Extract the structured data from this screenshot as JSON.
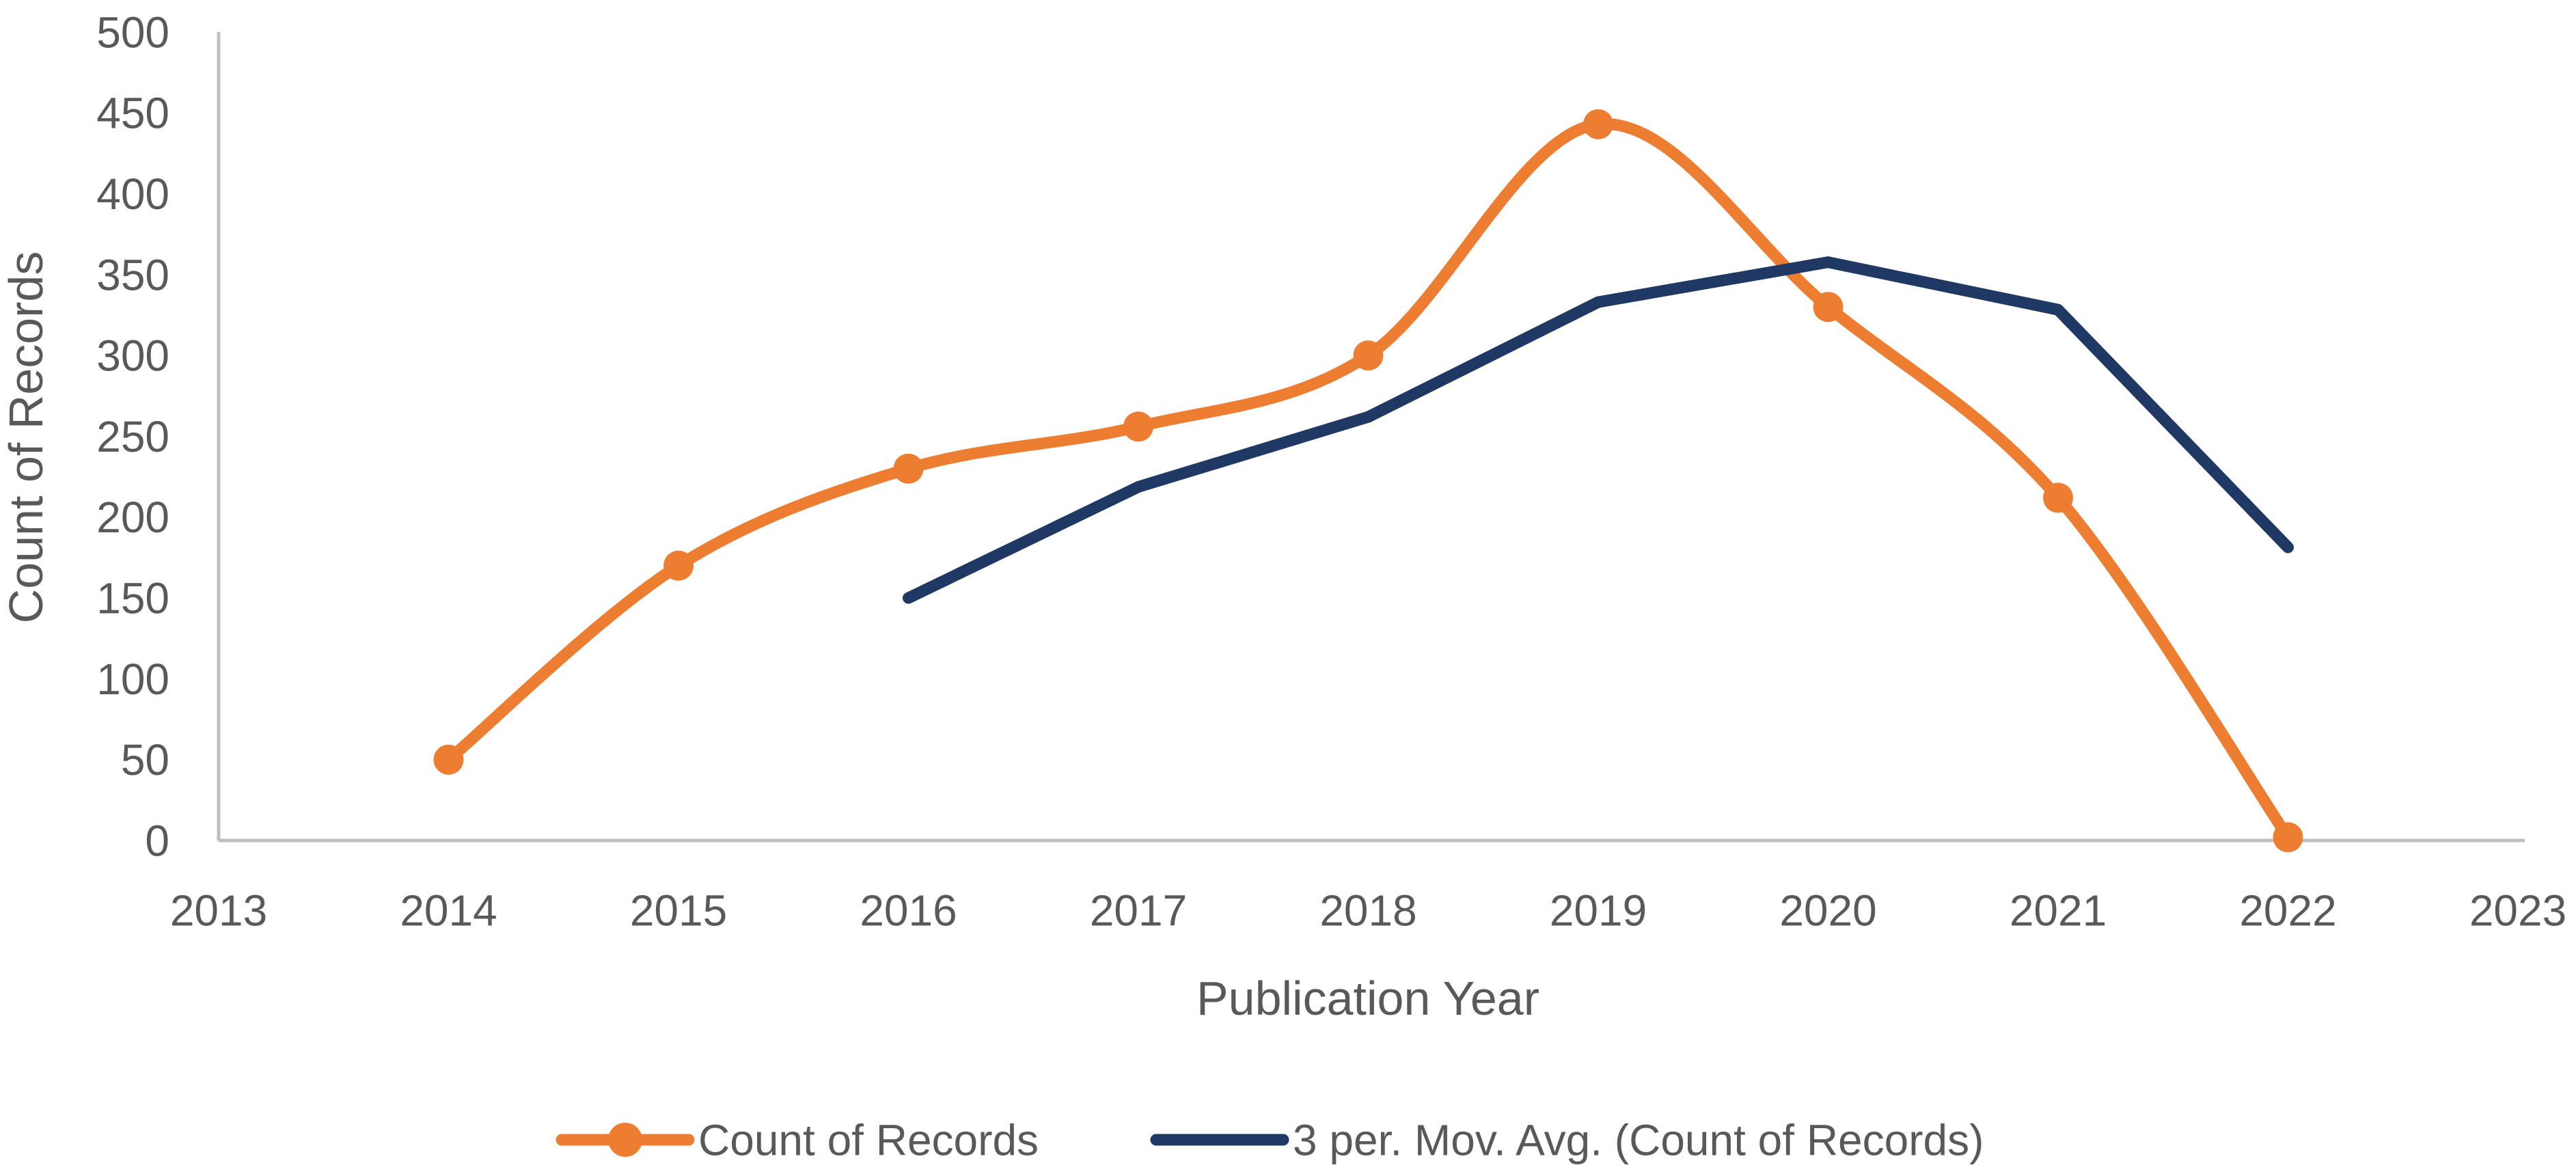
{
  "chart_data": {
    "type": "line",
    "title": "",
    "xlabel": "Publication Year",
    "ylabel": "Count of Records",
    "xlim": [
      2013,
      2023
    ],
    "ylim": [
      0,
      500
    ],
    "x_ticks": [
      2013,
      2014,
      2015,
      2016,
      2017,
      2018,
      2019,
      2020,
      2021,
      2022,
      2023
    ],
    "y_ticks": [
      0,
      50,
      100,
      150,
      200,
      250,
      300,
      350,
      400,
      450,
      500
    ],
    "grid": false,
    "legend_position": "bottom",
    "series": [
      {
        "name": "Count of Records",
        "color": "#ED7D31",
        "marker": "circle",
        "smooth": true,
        "x": [
          2014,
          2015,
          2016,
          2017,
          2018,
          2019,
          2020,
          2021,
          2022
        ],
        "values": [
          50,
          170,
          230,
          256,
          300,
          443,
          330,
          212,
          2
        ]
      },
      {
        "name": "3 per. Mov. Avg. (Count of Records)",
        "color": "#1F3864",
        "marker": "none",
        "smooth": false,
        "x": [
          2016,
          2017,
          2018,
          2019,
          2020,
          2021,
          2022
        ],
        "values": [
          150.0,
          218.7,
          262.0,
          333.0,
          357.7,
          328.3,
          181.3
        ]
      }
    ]
  },
  "colors": {
    "series_orange": "#ED7D31",
    "series_navy": "#1F3864",
    "axis_line": "#BFBFBF",
    "label_text": "#595959",
    "background": "#FFFFFF"
  }
}
